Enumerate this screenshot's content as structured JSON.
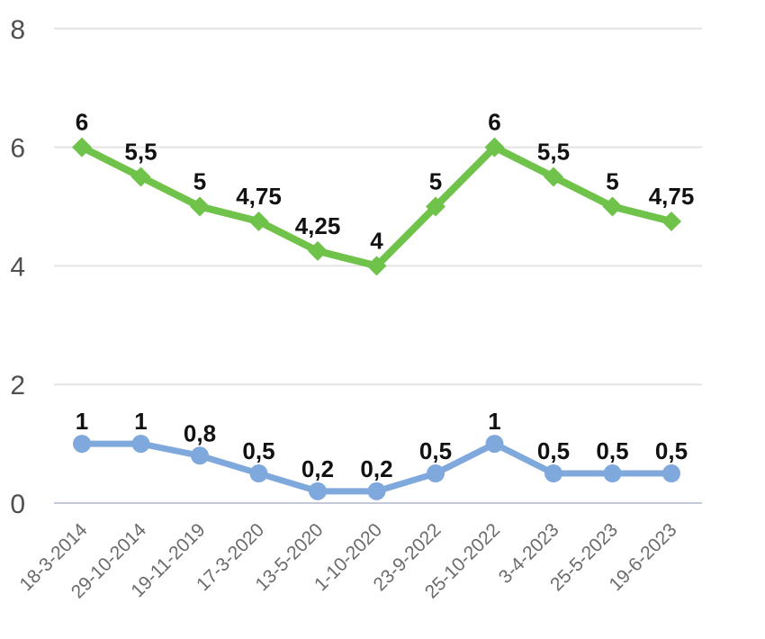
{
  "page": {
    "background": "#ffffff"
  },
  "chart_data": {
    "type": "line",
    "title": "",
    "xlabel": "",
    "ylabel": "",
    "x": [
      "18-3-2014",
      "29-10-2014",
      "19-11-2019",
      "17-3-2020",
      "13-5-2020",
      "1-10-2020",
      "23-9-2022",
      "25-10-2022",
      "3-4-2023",
      "25-5-2023",
      "19-6-2023"
    ],
    "series": [
      {
        "name": "series-green",
        "color": "#6fc24a",
        "marker": "diamond",
        "values": [
          6,
          5.5,
          5,
          4.75,
          4.25,
          4,
          5,
          6,
          5.5,
          5,
          4.75
        ],
        "labels": [
          "6",
          "5,5",
          "5",
          "4,75",
          "4,25",
          "4",
          "5",
          "6",
          "5,5",
          "5",
          "4,75"
        ]
      },
      {
        "name": "series-blue",
        "color": "#7fa8dc",
        "marker": "circle",
        "values": [
          1,
          1,
          0.8,
          0.5,
          0.2,
          0.2,
          0.5,
          1,
          0.5,
          0.5,
          0.5
        ],
        "labels": [
          "1",
          "1",
          "0,8",
          "0,5",
          "0,2",
          "0,2",
          "0,5",
          "1",
          "0,5",
          "0,5",
          "0,5"
        ]
      }
    ],
    "yticks": [
      8,
      6,
      4,
      2,
      0
    ],
    "ylim": [
      0,
      8.5
    ],
    "grid": true,
    "legend": "none",
    "x_label_rotation": -45,
    "decimal_separator": ",",
    "data_labels_shown": true,
    "colors": {
      "gridline": "#e4e4e4",
      "zero_line": "#c4c9d8",
      "y_axis_text": "#4f4f4f",
      "x_axis_text": "#6b6b6b",
      "data_label_text": "#111111"
    }
  }
}
